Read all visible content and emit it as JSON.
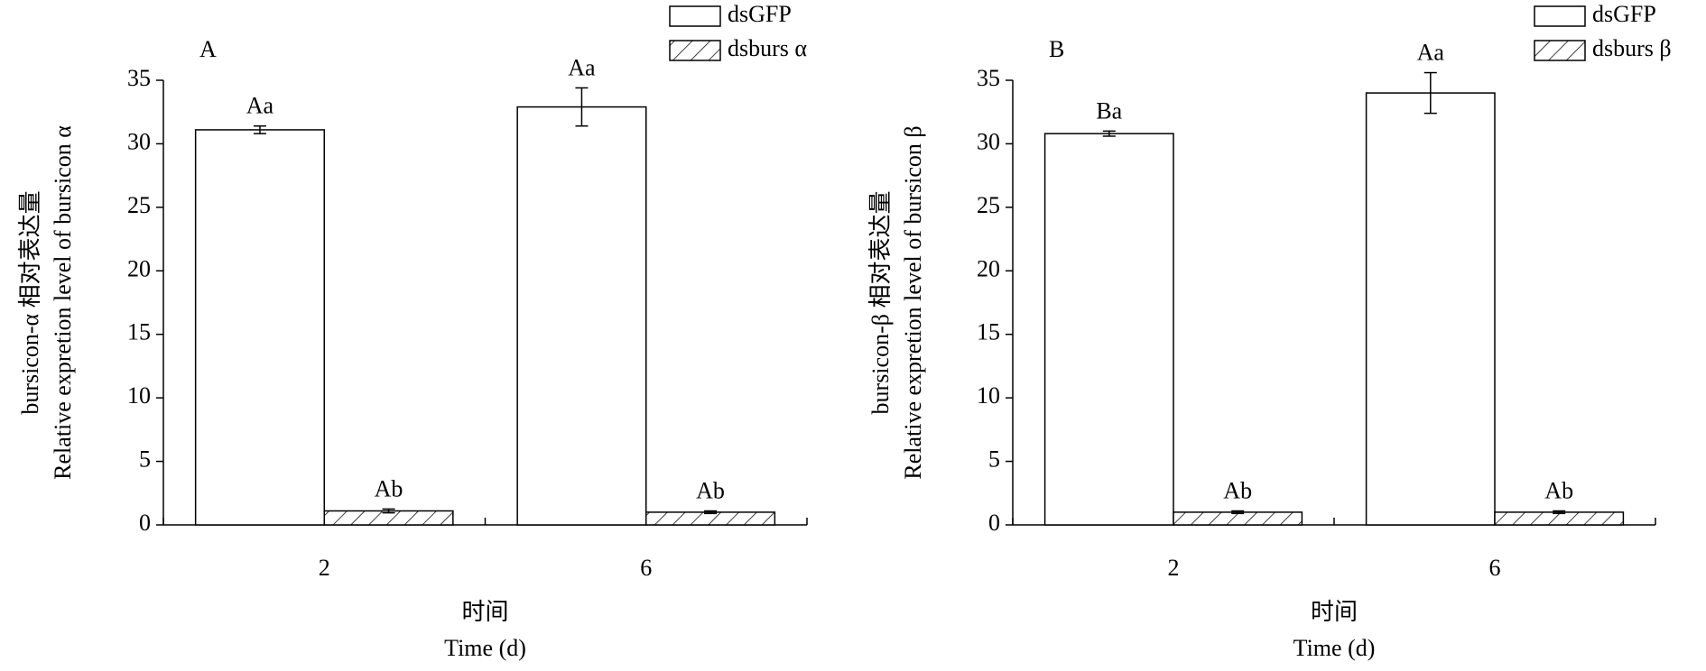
{
  "chart_data": [
    {
      "type": "bar",
      "panel_label": "A",
      "ylabel": [
        "bursicon-α 相对表达量",
        "Relative expretion level of bursicon α"
      ],
      "xlabel": [
        "时间",
        "Time (d)"
      ],
      "categories": [
        "2",
        "6"
      ],
      "series": [
        {
          "name": "dsGFP",
          "color": "#ffffff",
          "pattern": "none",
          "values": [
            31.1,
            32.9
          ],
          "errors": [
            0.3,
            1.5
          ],
          "significance": [
            "Aa",
            "Aa"
          ]
        },
        {
          "name": "dsburs α",
          "color": "#ffffff",
          "pattern": "hatch",
          "values": [
            1.1,
            1.0
          ],
          "errors": [
            0.15,
            0.1
          ],
          "significance": [
            "Ab",
            "Ab"
          ]
        }
      ],
      "ylim": [
        0,
        35
      ],
      "yticks": [
        0,
        5,
        10,
        15,
        20,
        25,
        30,
        35
      ],
      "legend": "top-right"
    },
    {
      "type": "bar",
      "panel_label": "B",
      "ylabel": [
        "bursicon-β 相对表达量",
        "Relative expretion level of bursicon β"
      ],
      "xlabel": [
        "时间",
        "Time (d)"
      ],
      "categories": [
        "2",
        "6"
      ],
      "series": [
        {
          "name": "dsGFP",
          "color": "#ffffff",
          "pattern": "none",
          "values": [
            30.8,
            34.0
          ],
          "errors": [
            0.2,
            1.6
          ],
          "significance": [
            "Ba",
            "Aa"
          ]
        },
        {
          "name": "dsburs β",
          "color": "#ffffff",
          "pattern": "hatch",
          "values": [
            1.0,
            1.0
          ],
          "errors": [
            0.1,
            0.1
          ],
          "significance": [
            "Ab",
            "Ab"
          ]
        }
      ],
      "ylim": [
        0,
        35
      ],
      "yticks": [
        0,
        5,
        10,
        15,
        20,
        25,
        30,
        35
      ],
      "legend": "top-right"
    }
  ]
}
